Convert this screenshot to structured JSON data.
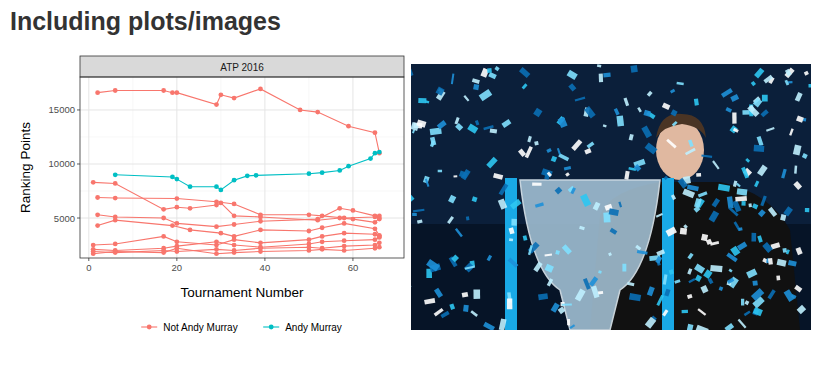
{
  "heading": "Including plots/images",
  "chart_data": {
    "type": "line",
    "title": "ATP 2016",
    "x_label": "Tournament Number",
    "y_label": "Ranking Points",
    "xlim": [
      -2,
      71.6
    ],
    "xticks": [
      0,
      20,
      40,
      60
    ],
    "ylim": [
      1300,
      18050
    ],
    "yticks": [
      5000,
      10000,
      15000
    ],
    "grid": true,
    "legend": "bottom",
    "marker": "circle",
    "series": [
      {
        "name": "Not Andy Murray",
        "color": "#F8766D",
        "x": [
          2,
          6,
          17,
          19,
          20,
          29,
          30,
          33,
          39,
          48,
          52,
          59,
          65,
          66
        ],
        "values": [
          16600,
          16800,
          16800,
          16600,
          16600,
          15500,
          16400,
          16100,
          16950,
          15000,
          14800,
          13500,
          12900,
          11000
        ]
      },
      {
        "name": "Andy Murray",
        "color": "#00BFC4",
        "x": [
          6,
          19,
          20,
          23,
          29,
          30,
          33,
          36,
          38,
          50,
          53,
          57,
          59,
          64,
          65,
          66
        ],
        "values": [
          9000,
          8800,
          8600,
          7900,
          7900,
          7600,
          8500,
          8900,
          8950,
          9100,
          9200,
          9400,
          9800,
          10500,
          11000,
          11100
        ]
      },
      {
        "name": "Not Andy Murray",
        "color": "#F8766D",
        "x": [
          1,
          6,
          17,
          20,
          23,
          29,
          30,
          33,
          39,
          52,
          57,
          60,
          65,
          66
        ],
        "values": [
          8300,
          8200,
          5800,
          6000,
          5900,
          6200,
          6400,
          5200,
          5100,
          4800,
          5000,
          4900,
          4600,
          5000
        ]
      },
      {
        "name": "Not Andy Murray",
        "color": "#F8766D",
        "x": [
          2,
          6,
          20,
          29,
          33,
          39,
          50,
          53,
          58,
          65,
          66
        ],
        "values": [
          6900,
          6850,
          6800,
          6500,
          6300,
          5300,
          5300,
          5200,
          5000,
          5100,
          5200
        ]
      },
      {
        "name": "Not Andy Murray",
        "color": "#F8766D",
        "x": [
          2,
          6,
          17,
          20,
          29,
          33,
          39,
          52,
          57,
          60,
          65,
          66
        ],
        "values": [
          5300,
          5100,
          5000,
          4500,
          4200,
          4400,
          4700,
          4900,
          5900,
          5700,
          5200,
          4900
        ]
      },
      {
        "name": "Not Andy Murray",
        "color": "#F8766D",
        "x": [
          2,
          6,
          19,
          23,
          30,
          33,
          39,
          50,
          53,
          58,
          65,
          66
        ],
        "values": [
          4300,
          4800,
          4300,
          3900,
          3600,
          3300,
          3900,
          3800,
          4100,
          4500,
          4000,
          3400
        ]
      },
      {
        "name": "Not Andy Murray",
        "color": "#F8766D",
        "x": [
          1,
          6,
          17,
          20,
          29,
          33,
          39,
          50,
          53,
          58,
          65,
          66
        ],
        "values": [
          2500,
          2600,
          3300,
          2800,
          2500,
          3000,
          2700,
          3000,
          3300,
          3600,
          3500,
          3300
        ]
      },
      {
        "name": "Not Andy Murray",
        "color": "#F8766D",
        "x": [
          1,
          6,
          17,
          20,
          29,
          33,
          39,
          50,
          53,
          58,
          65,
          66
        ],
        "values": [
          2100,
          2000,
          2200,
          2400,
          2800,
          2500,
          2300,
          2600,
          2800,
          2900,
          3000,
          3200
        ]
      },
      {
        "name": "Not Andy Murray",
        "color": "#F8766D",
        "x": [
          1,
          6,
          17,
          20,
          29,
          33,
          39,
          50,
          53,
          58,
          65,
          66
        ],
        "values": [
          1900,
          1800,
          2000,
          1900,
          2100,
          2000,
          2200,
          2300,
          2200,
          2400,
          2500,
          2700
        ]
      },
      {
        "name": "Not Andy Murray",
        "color": "#F8766D",
        "x": [
          1,
          6,
          17,
          20,
          29,
          33,
          39,
          50,
          53,
          58,
          65,
          66
        ],
        "values": [
          1700,
          1900,
          1800,
          2200,
          1700,
          1800,
          1900,
          2000,
          2100,
          2000,
          2200,
          2300
        ]
      }
    ]
  }
}
